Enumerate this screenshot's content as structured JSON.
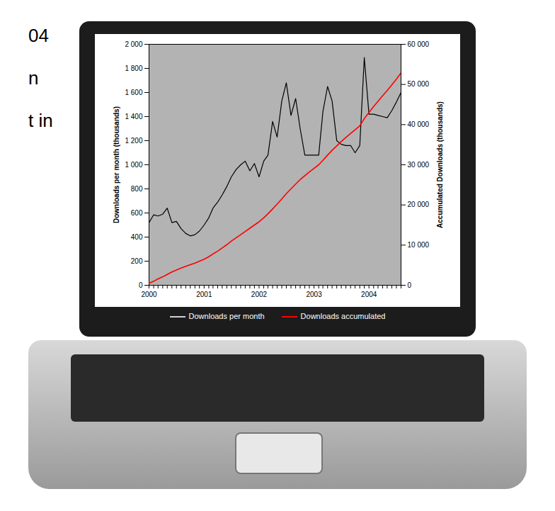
{
  "chart_data": {
    "type": "line",
    "annotations": [
      "04",
      "n",
      "t in"
    ],
    "y_label": "Downloads per month (thousands)",
    "y2_label": "Accumulated Downloads (thousands)",
    "x": [
      "2000-01",
      "2000-02",
      "2000-03",
      "2000-04",
      "2000-05",
      "2000-06",
      "2000-07",
      "2000-08",
      "2000-09",
      "2000-10",
      "2000-11",
      "2000-12",
      "2001-01",
      "2001-02",
      "2001-03",
      "2001-04",
      "2001-05",
      "2001-06",
      "2001-07",
      "2001-08",
      "2001-09",
      "2001-10",
      "2001-11",
      "2001-12",
      "2002-01",
      "2002-02",
      "2002-03",
      "2002-04",
      "2002-05",
      "2002-06",
      "2002-07",
      "2002-08",
      "2002-09",
      "2002-10",
      "2002-11",
      "2002-12",
      "2003-01",
      "2003-02",
      "2003-03",
      "2003-04",
      "2003-05",
      "2003-06",
      "2003-07",
      "2003-08",
      "2003-09",
      "2003-10",
      "2003-11",
      "2003-12",
      "2004-01",
      "2004-02",
      "2004-03",
      "2004-04",
      "2004-05",
      "2004-06",
      "2004-07",
      "2004-08"
    ],
    "xlim": [
      "2000-01",
      "2004-08"
    ],
    "xticks": [
      {
        "value": "2000-01",
        "label": "2000"
      },
      {
        "value": "2001-01",
        "label": "2001"
      },
      {
        "value": "2002-01",
        "label": "2002"
      },
      {
        "value": "2003-01",
        "label": "2003"
      },
      {
        "value": "2004-01",
        "label": "2004"
      }
    ],
    "ylim": [
      0,
      2000
    ],
    "yticks": [
      0,
      200,
      400,
      600,
      800,
      {
        "value": 1000,
        "label": "1 000"
      },
      {
        "value": 1200,
        "label": "1 200"
      },
      {
        "value": 1400,
        "label": "1 400"
      },
      {
        "value": 1600,
        "label": "1 600"
      },
      {
        "value": 1800,
        "label": "1 800"
      },
      {
        "value": 2000,
        "label": "2 000"
      }
    ],
    "y2lim": [
      0,
      60000
    ],
    "y2ticks": [
      0,
      {
        "value": 10000,
        "label": "10 000"
      },
      {
        "value": 20000,
        "label": "20 000"
      },
      {
        "value": 30000,
        "label": "30 000"
      },
      {
        "value": 40000,
        "label": "40 000"
      },
      {
        "value": 50000,
        "label": "50 000"
      },
      {
        "value": 60000,
        "label": "60 000"
      }
    ],
    "grid": false,
    "legend": "bottom",
    "series": [
      {
        "name": "Downloads per month",
        "color": "#000000",
        "axis": "y",
        "values": [
          520,
          585,
          575,
          590,
          640,
          520,
          530,
          470,
          430,
          410,
          420,
          450,
          500,
          560,
          640,
          690,
          750,
          820,
          900,
          960,
          1000,
          1030,
          950,
          1010,
          900,
          1030,
          1080,
          1360,
          1230,
          1530,
          1680,
          1410,
          1550,
          1300,
          1080,
          1080,
          1080,
          1080,
          1440,
          1650,
          1530,
          1200,
          1170,
          1160,
          1160,
          1100,
          1160,
          1890,
          1420,
          1420,
          1410,
          1400,
          1390,
          1450,
          1520,
          1600
        ]
      },
      {
        "name": "Downloads accumulated",
        "color": "#ff0000",
        "axis": "y2",
        "values": [
          500,
          1000,
          1600,
          2100,
          2700,
          3300,
          3800,
          4300,
          4700,
          5100,
          5500,
          6000,
          6500,
          7100,
          7800,
          8500,
          9300,
          10100,
          11000,
          11800,
          12600,
          13400,
          14200,
          15000,
          15800,
          16800,
          17800,
          19000,
          20200,
          21500,
          22800,
          24000,
          25200,
          26300,
          27300,
          28200,
          29100,
          30000,
          31100,
          32400,
          33600,
          34700,
          35800,
          36800,
          37800,
          38700,
          39700,
          41500,
          43000,
          44500,
          45800,
          47200,
          48500,
          49900,
          51300,
          52900
        ]
      }
    ]
  }
}
